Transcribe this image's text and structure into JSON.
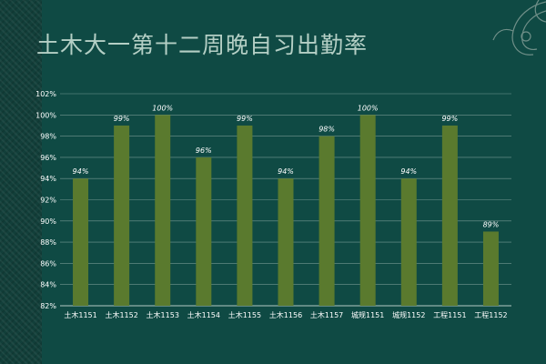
{
  "page": {
    "title": "土木大一第十二周晚自习出勤率"
  },
  "colors": {
    "background": "#0f4a44",
    "bar": "#5a7a2e",
    "text": "#ffffff",
    "title": "#b4cfc5",
    "grid": "#c8d8d2"
  },
  "chart_data": {
    "type": "bar",
    "title": "",
    "xlabel": "",
    "ylabel": "",
    "categories": [
      "土木1151",
      "土木1152",
      "土木1153",
      "土木1154",
      "土木1155",
      "土木1156",
      "土木1157",
      "城规1151",
      "城规1152",
      "工程1151",
      "工程1152"
    ],
    "values": [
      94,
      99,
      100,
      96,
      99,
      94,
      98,
      100,
      94,
      99,
      89
    ],
    "data_labels": [
      "94%",
      "99%",
      "100%",
      "96%",
      "99%",
      "94%",
      "98%",
      "100%",
      "94%",
      "99%",
      "89%"
    ],
    "ylim": [
      82,
      102
    ],
    "yticks": [
      "82%",
      "84%",
      "86%",
      "88%",
      "90%",
      "92%",
      "94%",
      "96%",
      "98%",
      "100%",
      "102%"
    ],
    "grid": true,
    "legend": "none"
  }
}
